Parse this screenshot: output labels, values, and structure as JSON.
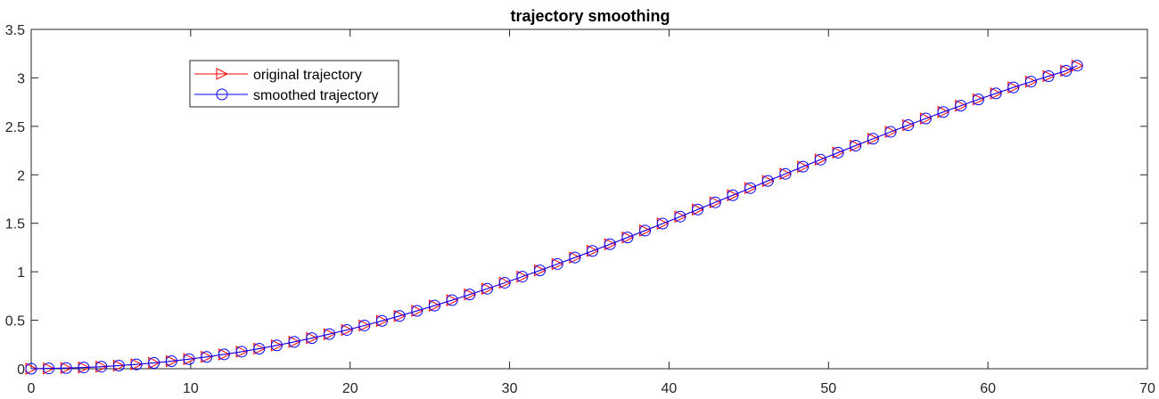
{
  "chart_data": {
    "type": "line",
    "title": "trajectory smoothing",
    "xlabel": "",
    "ylabel": "",
    "xlim": [
      0,
      70
    ],
    "ylim": [
      0,
      3.5
    ],
    "x_ticks": [
      0,
      10,
      20,
      30,
      40,
      50,
      60,
      70
    ],
    "y_ticks": [
      0,
      0.5,
      1,
      1.5,
      2,
      2.5,
      3,
      3.5
    ],
    "x_tick_labels": [
      "0",
      "10",
      "20",
      "30",
      "40",
      "50",
      "60",
      "70"
    ],
    "y_tick_labels": [
      "0",
      "0.5",
      "1",
      "1.5",
      "2",
      "2.5",
      "3",
      "3.5"
    ],
    "grid": false,
    "legend_position": "top-left",
    "x": [
      0,
      1.1,
      2.2,
      3.3,
      4.4,
      5.5,
      6.6,
      7.7,
      8.8,
      9.9,
      11.0,
      12.1,
      13.2,
      14.3,
      15.4,
      16.5,
      17.6,
      18.7,
      19.8,
      20.9,
      22.0,
      23.1,
      24.2,
      25.3,
      26.4,
      27.5,
      28.6,
      29.7,
      30.8,
      31.9,
      33.0,
      34.1,
      35.2,
      36.3,
      37.4,
      38.5,
      39.6,
      40.7,
      41.8,
      42.9,
      44.0,
      45.1,
      46.2,
      47.3,
      48.4,
      49.5,
      50.6,
      51.7,
      52.8,
      53.9,
      55.0,
      56.1,
      57.2,
      58.3,
      59.4,
      60.5,
      61.6,
      62.7,
      63.8,
      64.9,
      65.6
    ],
    "series": [
      {
        "name": "original trajectory",
        "color": "#ff0000",
        "marker": "triangle-right",
        "values": [
          0.0,
          0.003,
          0.007,
          0.013,
          0.021,
          0.032,
          0.045,
          0.06,
          0.078,
          0.099,
          0.122,
          0.148,
          0.176,
          0.207,
          0.241,
          0.277,
          0.316,
          0.357,
          0.4,
          0.446,
          0.494,
          0.544,
          0.597,
          0.651,
          0.707,
          0.766,
          0.825,
          0.887,
          0.95,
          1.014,
          1.08,
          1.147,
          1.215,
          1.284,
          1.354,
          1.425,
          1.497,
          1.569,
          1.642,
          1.716,
          1.789,
          1.863,
          1.937,
          2.01,
          2.084,
          2.157,
          2.229,
          2.301,
          2.372,
          2.443,
          2.512,
          2.581,
          2.648,
          2.713,
          2.778,
          2.84,
          2.902,
          2.961,
          3.018,
          3.073,
          3.126
        ]
      },
      {
        "name": "smoothed trajectory",
        "color": "#0000ff",
        "marker": "circle",
        "values": [
          0.0,
          0.003,
          0.007,
          0.013,
          0.021,
          0.032,
          0.045,
          0.06,
          0.078,
          0.099,
          0.122,
          0.148,
          0.176,
          0.207,
          0.241,
          0.277,
          0.316,
          0.357,
          0.4,
          0.446,
          0.494,
          0.544,
          0.597,
          0.651,
          0.707,
          0.766,
          0.825,
          0.887,
          0.95,
          1.014,
          1.08,
          1.147,
          1.215,
          1.284,
          1.354,
          1.425,
          1.497,
          1.569,
          1.642,
          1.716,
          1.789,
          1.863,
          1.937,
          2.01,
          2.084,
          2.157,
          2.229,
          2.301,
          2.372,
          2.443,
          2.512,
          2.581,
          2.648,
          2.713,
          2.778,
          2.84,
          2.902,
          2.961,
          3.018,
          3.073,
          3.126
        ]
      }
    ]
  }
}
